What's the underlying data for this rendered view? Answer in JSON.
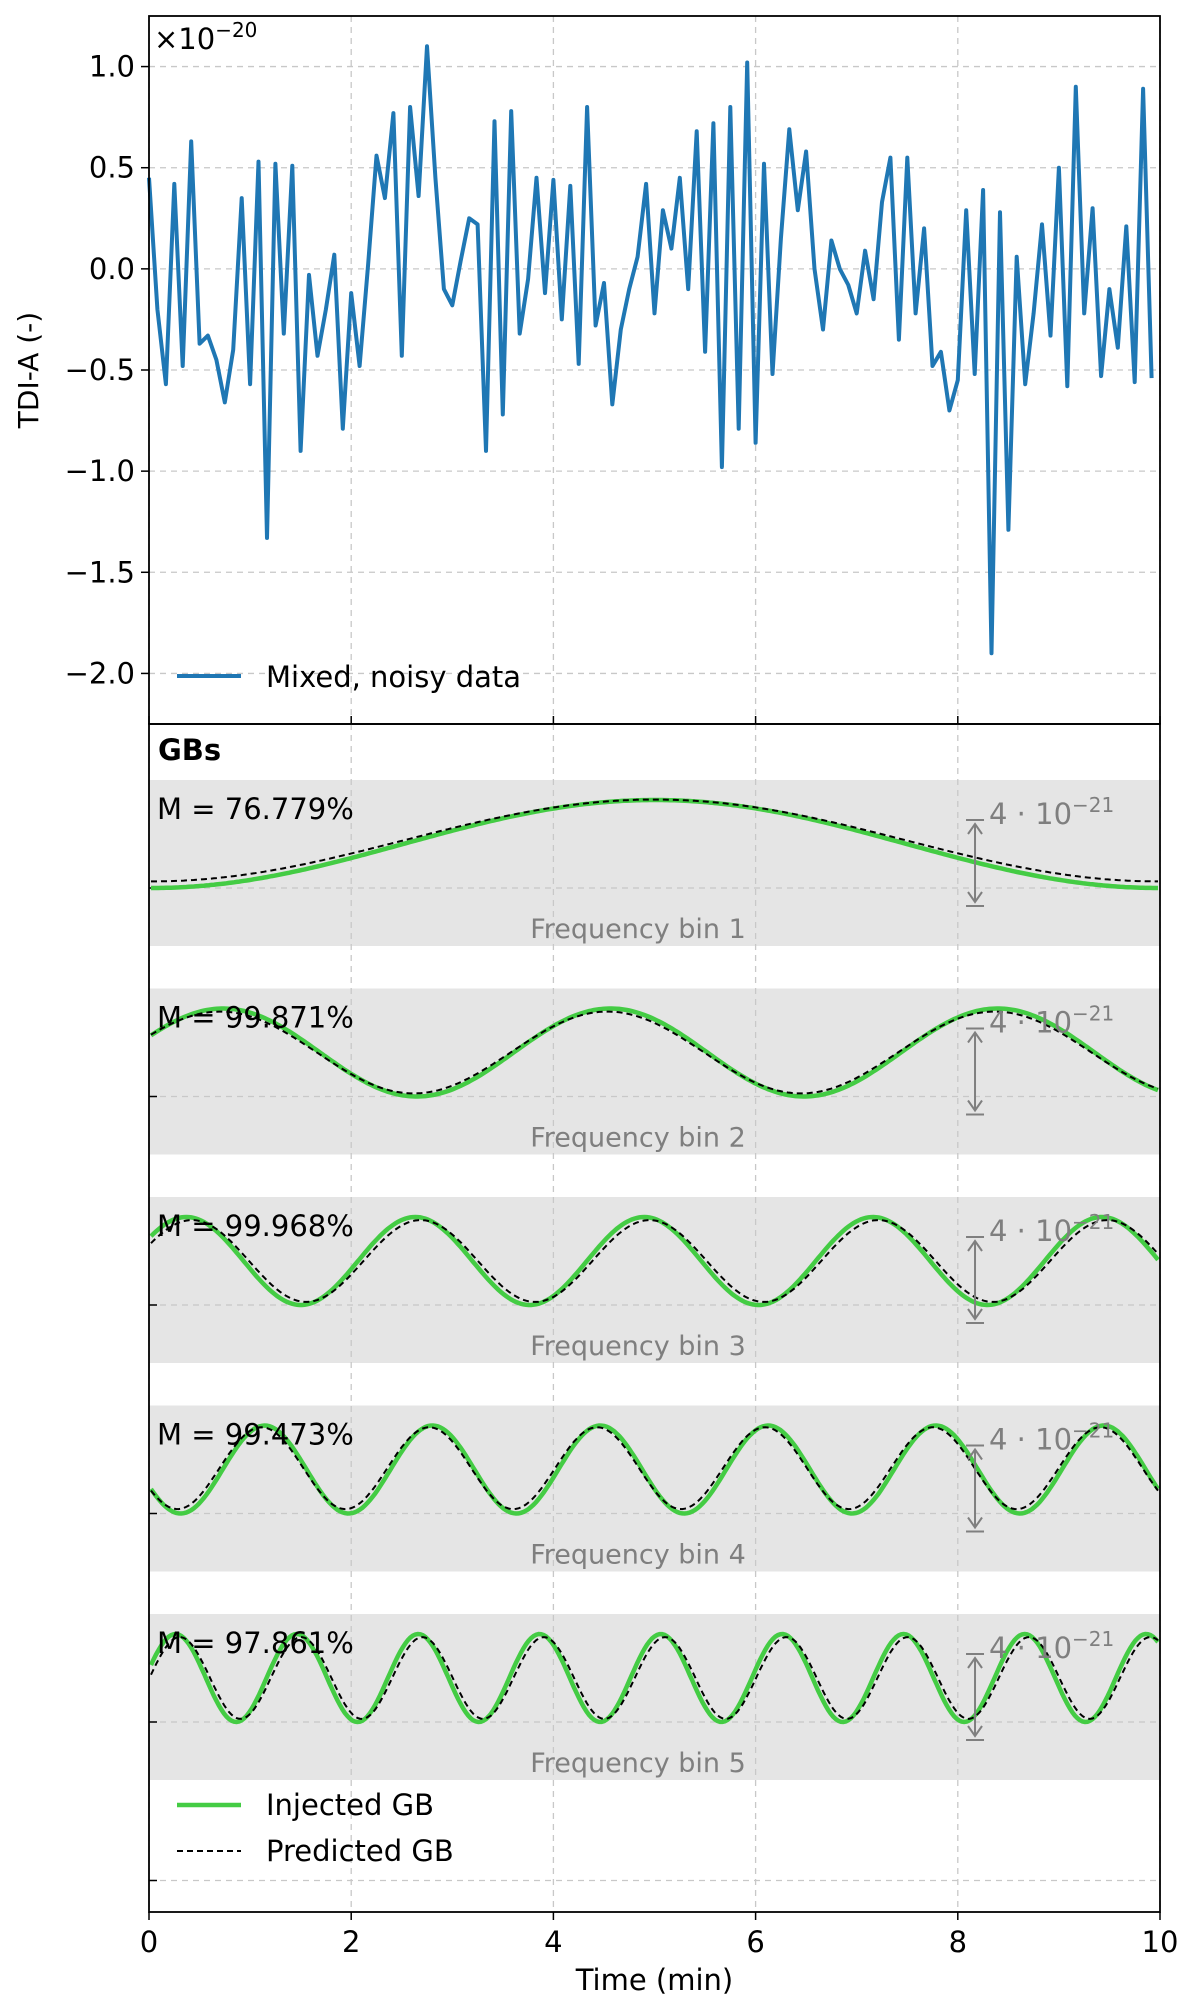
{
  "chart_data": [
    {
      "type": "line",
      "panel": "top",
      "ylabel": "TDI-A (-)",
      "xlabel": "",
      "scale_label": "×10",
      "scale_exp": "−20",
      "xlim": [
        0,
        10
      ],
      "ylim": [
        -2.25,
        1.25
      ],
      "grid": true,
      "legend_position": "lower-left",
      "yticks": [
        1.0,
        0.5,
        0.0,
        -0.5,
        -1.0,
        -1.5,
        -2.0
      ],
      "ytick_labels": [
        "1.0",
        "0.5",
        "0.0",
        "−0.5",
        "−1.0",
        "−1.5",
        "−2.0"
      ],
      "series": [
        {
          "name": "Mixed, noisy data",
          "color": "#1f77b4",
          "x": [
            0,
            0.083,
            0.167,
            0.25,
            0.333,
            0.417,
            0.5,
            0.583,
            0.667,
            0.75,
            0.833,
            0.917,
            1.0,
            1.083,
            1.167,
            1.25,
            1.333,
            1.417,
            1.5,
            1.583,
            1.667,
            1.75,
            1.833,
            1.917,
            2.0,
            2.083,
            2.167,
            2.25,
            2.333,
            2.417,
            2.5,
            2.583,
            2.667,
            2.75,
            2.833,
            2.917,
            3.0,
            3.083,
            3.167,
            3.25,
            3.333,
            3.417,
            3.5,
            3.583,
            3.667,
            3.75,
            3.833,
            3.917,
            4.0,
            4.083,
            4.167,
            4.25,
            4.333,
            4.417,
            4.5,
            4.583,
            4.667,
            4.75,
            4.833,
            4.917,
            5.0,
            5.083,
            5.167,
            5.25,
            5.333,
            5.417,
            5.5,
            5.583,
            5.667,
            5.75,
            5.833,
            5.917,
            6.0,
            6.083,
            6.167,
            6.25,
            6.333,
            6.417,
            6.5,
            6.583,
            6.667,
            6.75,
            6.833,
            6.917,
            7.0,
            7.083,
            7.167,
            7.25,
            7.333,
            7.417,
            7.5,
            7.583,
            7.667,
            7.75,
            7.833,
            7.917,
            8.0,
            8.083,
            8.167,
            8.25,
            8.333,
            8.417,
            8.5,
            8.583,
            8.667,
            8.75,
            8.833,
            8.917,
            9.0,
            9.083,
            9.167,
            9.25,
            9.333,
            9.417,
            9.5,
            9.583,
            9.667,
            9.75,
            9.833,
            9.917
          ],
          "y": [
            0.45,
            -0.2,
            -0.57,
            0.42,
            -0.48,
            0.63,
            -0.37,
            -0.33,
            -0.45,
            -0.66,
            -0.4,
            0.35,
            -0.57,
            0.53,
            -1.33,
            0.52,
            -0.32,
            0.51,
            -0.9,
            -0.03,
            -0.43,
            -0.2,
            0.07,
            -0.79,
            -0.12,
            -0.48,
            0.02,
            0.56,
            0.35,
            0.77,
            -0.43,
            0.8,
            0.36,
            1.1,
            0.45,
            -0.1,
            -0.18,
            0.04,
            0.25,
            0.22,
            -0.9,
            0.73,
            -0.72,
            0.78,
            -0.32,
            -0.05,
            0.45,
            -0.12,
            0.44,
            -0.25,
            0.41,
            -0.47,
            0.8,
            -0.28,
            -0.07,
            -0.67,
            -0.3,
            -0.1,
            0.06,
            0.42,
            -0.22,
            0.29,
            0.1,
            0.45,
            -0.1,
            0.68,
            -0.41,
            0.72,
            -0.98,
            0.8,
            -0.79,
            1.02,
            -0.86,
            0.52,
            -0.52,
            0.15,
            0.69,
            0.29,
            0.58,
            0.0,
            -0.3,
            0.14,
            0.0,
            -0.08,
            -0.22,
            0.09,
            -0.15,
            0.33,
            0.55,
            -0.35,
            0.55,
            -0.22,
            0.2,
            -0.48,
            -0.41,
            -0.7,
            -0.55,
            0.29,
            -0.52,
            0.39,
            -1.9,
            0.28,
            -1.29,
            0.06,
            -0.57,
            -0.22,
            0.22,
            -0.33,
            0.5,
            -0.58,
            0.9,
            -0.22,
            0.3,
            -0.53,
            -0.1,
            -0.39,
            0.21,
            -0.56,
            0.89,
            -0.54
          ]
        }
      ]
    },
    {
      "type": "line",
      "panel": "bottom",
      "title": "GBs",
      "xlabel": "Time (min)",
      "xlim": [
        0,
        10
      ],
      "xticks": [
        0,
        2,
        4,
        6,
        8,
        10
      ],
      "xtick_labels": [
        "0",
        "2",
        "4",
        "6",
        "8",
        "10"
      ],
      "grid": true,
      "legend_position": "lower-left",
      "legend": [
        {
          "name": "Injected GB",
          "color": "#44cc44",
          "style": "solid"
        },
        {
          "name": "Predicted GB",
          "color": "#000000",
          "style": "dashed"
        }
      ],
      "scale_bar": {
        "text": "4 · 10",
        "exp": "−21",
        "x": 8.2,
        "color": "#7f7f7f"
      },
      "bands": [
        {
          "label": "Frequency bin 1",
          "match": "M = 76.779%",
          "amplitude": 0.6,
          "cycles": 1,
          "injected_phase": 4.71,
          "predicted_offset": 0.08,
          "predicted_phase_shift": 0.0
        },
        {
          "label": "Frequency bin 2",
          "match": "M = 99.871%",
          "amplitude": 0.6,
          "cycles": 2.6,
          "injected_phase": 0.4,
          "predicted_offset": 0.0,
          "predicted_phase_shift": 0.05
        },
        {
          "label": "Frequency bin 3",
          "match": "M = 99.968%",
          "amplitude": 0.6,
          "cycles": 4.4,
          "injected_phase": 0.6,
          "predicted_offset": 0.0,
          "predicted_phase_shift": -0.15
        },
        {
          "label": "Frequency bin 4",
          "match": "M = 99.473%",
          "amplitude": 0.6,
          "cycles": 6.0,
          "injected_phase": 3.6,
          "predicted_offset": 0.03,
          "predicted_phase_shift": 0.12
        },
        {
          "label": "Frequency bin 5",
          "match": "M = 97.861%",
          "amplitude": 0.6,
          "cycles": 8.3,
          "injected_phase": 0.3,
          "predicted_offset": 0.0,
          "predicted_phase_shift": -0.22
        }
      ]
    }
  ]
}
